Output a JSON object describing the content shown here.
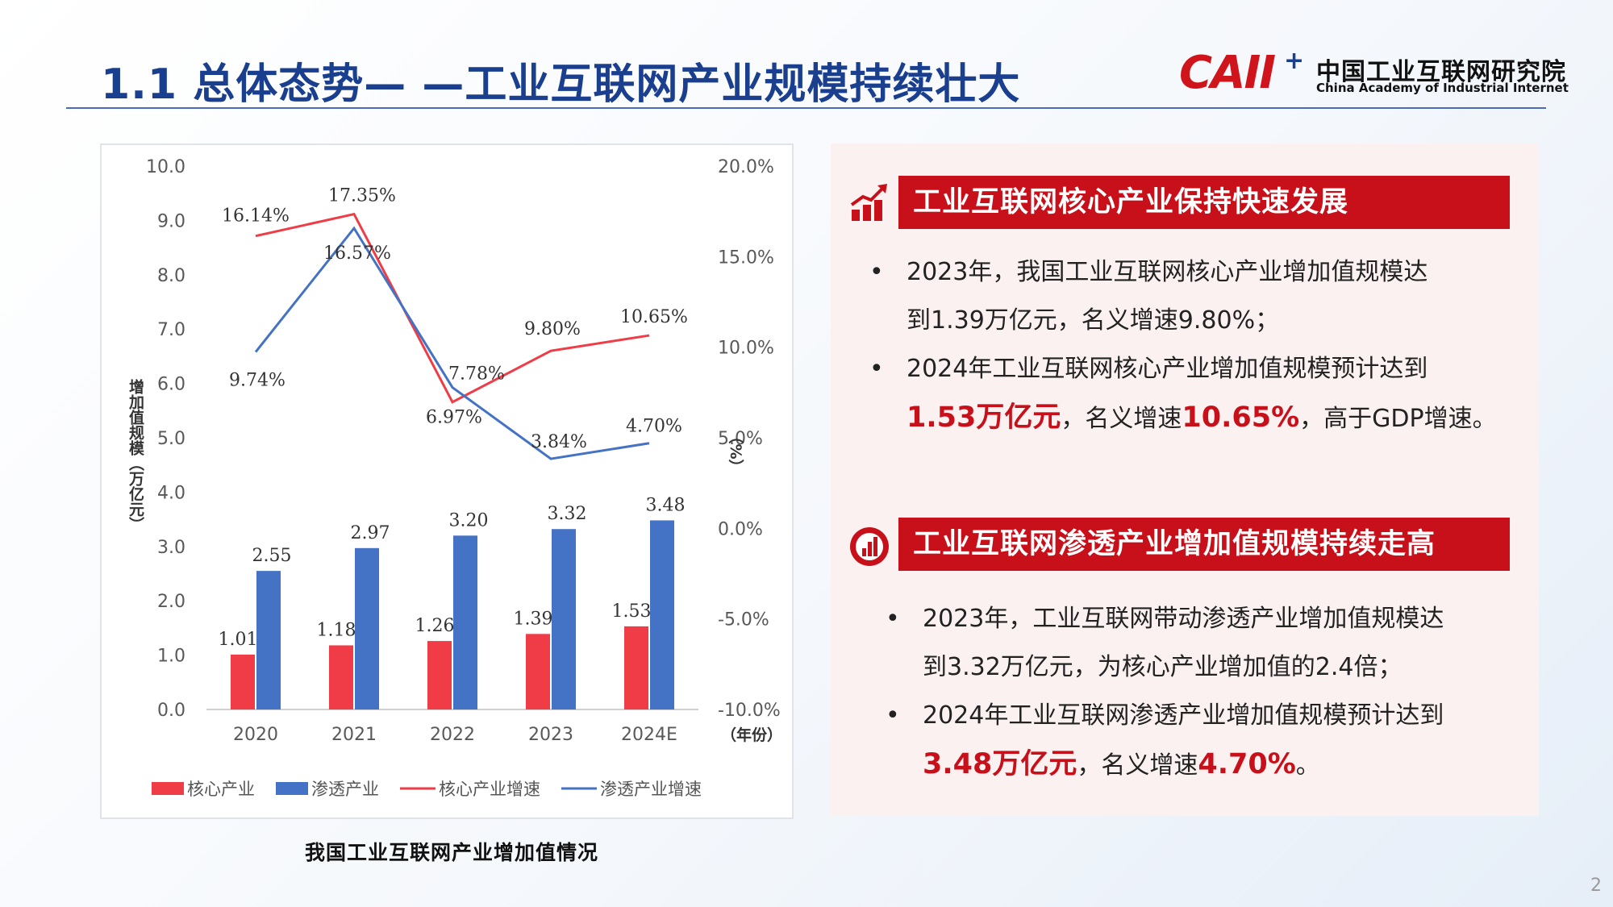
{
  "header": {
    "title": "1.1 总体态势— —工业互联网产业规模持续壮大",
    "logo_text": "CAII",
    "logo_plus": "+",
    "org_cn": "中国工业互联网研究院",
    "org_en": "China Academy of Industrial Internet"
  },
  "chart_data": {
    "type": "bar+line",
    "categories": [
      "2020",
      "2021",
      "2022",
      "2023",
      "2024E"
    ],
    "ylabel": "增加值规模（万亿元）",
    "y2label": "（%）",
    "xlabel": "（年份）",
    "ylim": [
      0,
      10
    ],
    "y2lim": [
      -10,
      20
    ],
    "yticks": [
      "0.0",
      "1.0",
      "2.0",
      "3.0",
      "4.0",
      "5.0",
      "6.0",
      "7.0",
      "8.0",
      "9.0",
      "10.0"
    ],
    "y2ticks": [
      "-10.0%",
      "-5.0%",
      "0.0%",
      "5.0%",
      "10.0%",
      "15.0%",
      "20.0%"
    ],
    "bars": [
      {
        "name": "核心产业",
        "color": "#f03c46",
        "values": [
          1.01,
          1.18,
          1.26,
          1.39,
          1.53
        ],
        "labels": [
          "1.01",
          "1.18",
          "1.26",
          "1.39",
          "1.53"
        ]
      },
      {
        "name": "渗透产业",
        "color": "#4472c4",
        "values": [
          2.55,
          2.97,
          3.2,
          3.32,
          3.48
        ],
        "labels": [
          "2.55",
          "2.97",
          "3.20",
          "3.32",
          "3.48"
        ]
      }
    ],
    "lines": [
      {
        "name": "核心产业增速",
        "color": "#f03c46",
        "values": [
          16.14,
          17.35,
          6.97,
          9.8,
          10.65
        ],
        "labels": [
          "16.14%",
          "17.35%",
          "6.97%",
          "9.80%",
          "10.65%"
        ]
      },
      {
        "name": "渗透产业增速",
        "color": "#4472c4",
        "values": [
          9.74,
          16.57,
          7.78,
          3.84,
          4.7
        ],
        "labels": [
          "9.74%",
          "16.57%",
          "7.78%",
          "3.84%",
          "4.70%"
        ]
      }
    ],
    "legend_position": "bottom",
    "grid": false
  },
  "chart_caption": "我国工业互联网产业增加值情况",
  "sections": [
    {
      "header": "工业互联网核心产业保持快速发展",
      "bullets": [
        {
          "lines": [
            [
              {
                "t": "2023年，我国工业互联网核心产业增加值规模达"
              }
            ],
            [
              {
                "t": "到1.39万亿元，名义增速9.80%；"
              }
            ]
          ]
        },
        {
          "lines": [
            [
              {
                "t": "2024年工业互联网核心产业增加值规模预计达到"
              }
            ],
            [
              {
                "t": "1.53万亿元",
                "hl": true
              },
              {
                "t": "，名义增速"
              },
              {
                "t": "10.65%",
                "hl": true
              },
              {
                "t": "，高于GDP增速。"
              }
            ]
          ]
        }
      ]
    },
    {
      "header": "工业互联网渗透产业增加值规模持续走高",
      "bullets": [
        {
          "lines": [
            [
              {
                "t": "2023年，工业互联网带动渗透产业增加值规模达"
              }
            ],
            [
              {
                "t": "到3.32万亿元，为核心产业增加值的2.4倍；"
              }
            ]
          ]
        },
        {
          "lines": [
            [
              {
                "t": "2024年工业互联网渗透产业增加值规模预计达到"
              }
            ],
            [
              {
                "t": "3.48万亿元",
                "hl": true
              },
              {
                "t": "，名义增速"
              },
              {
                "t": "4.70%",
                "hl": true
              },
              {
                "t": "。"
              }
            ]
          ]
        }
      ]
    }
  ],
  "bullet_symbol": "•",
  "icons": [
    "growth-chart-icon",
    "report-chart-icon"
  ],
  "colors": {
    "accent": "#c8101a",
    "title": "#1b3f8f"
  },
  "page_number": "2"
}
